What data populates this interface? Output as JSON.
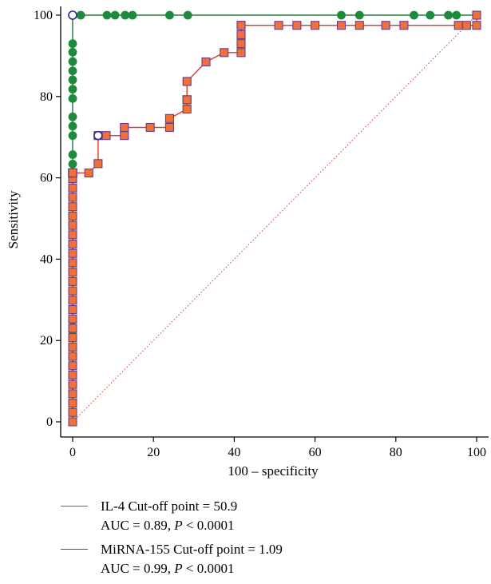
{
  "chart_data": {
    "type": "line",
    "xlabel": "100 – specificity",
    "ylabel": "Sensitivity",
    "xlim": [
      0,
      100
    ],
    "ylim": [
      0,
      100
    ],
    "x_ticks": [
      "0",
      "20",
      "40",
      "60",
      "80",
      "100"
    ],
    "y_ticks": [
      "0",
      "20",
      "40",
      "60",
      "80",
      "100"
    ],
    "grid": false,
    "legend_position": "bottom",
    "reference_line": {
      "x": [
        0,
        100
      ],
      "y": [
        0,
        100
      ],
      "color": "#d93a2b",
      "style": "dotted"
    },
    "series": [
      {
        "name": "IL-4",
        "color": "#d93a2b",
        "marker": "square",
        "marker_fill": "#f0703a",
        "marker_edge": "#6a3c8c",
        "x": [
          0,
          0,
          0,
          0,
          0,
          0,
          0,
          0,
          0,
          0,
          0,
          0,
          0,
          0,
          0,
          0,
          0,
          0,
          0,
          0,
          0,
          0,
          0,
          0,
          0,
          0,
          0,
          0,
          0,
          0,
          0,
          0,
          0,
          0,
          0,
          0,
          0,
          0,
          4,
          6.3,
          6.3,
          8.3,
          12.8,
          12.8,
          19.2,
          24,
          24,
          28.3,
          28.3,
          28.3,
          28.3,
          33,
          37.5,
          41.7,
          41.7,
          41.7,
          41.7,
          41.7,
          51,
          55.5,
          60,
          66.5,
          71,
          77.5,
          82,
          95.5,
          97.5,
          100,
          100
        ],
        "y": [
          0,
          2.3,
          4.6,
          6.9,
          9.2,
          11.5,
          13.8,
          16.1,
          18.4,
          20.7,
          23,
          25.3,
          27.6,
          29.9,
          32.2,
          34.5,
          36.8,
          39.1,
          41.4,
          43.7,
          46,
          48.3,
          50.6,
          52.9,
          55.2,
          57.5,
          59.8,
          61.2,
          61.2,
          61.2,
          61.2,
          61.2,
          61.2,
          61.2,
          61.2,
          61.2,
          61.2,
          61.2,
          61.2,
          63.5,
          70.4,
          70.4,
          70.4,
          72.4,
          72.4,
          72.4,
          74.6,
          76.9,
          79.2,
          79.2,
          83.7,
          88.5,
          90.8,
          90.8,
          93,
          95.2,
          97.5,
          97.5,
          97.5,
          97.5,
          97.5,
          97.5,
          97.5,
          97.5,
          97.5,
          97.5,
          97.5,
          97.5,
          100
        ],
        "legend_label": "IL-4 Cut-off point = 50.9",
        "legend_stats_prefix": "AUC = 0.89, ",
        "legend_stats_p": "P",
        "legend_stats_suffix": " < 0.0001"
      },
      {
        "name": "MiRNA-155",
        "color": "#1e7a3c",
        "marker": "circle",
        "marker_fill": "#1e8a3c",
        "marker_edge": "#1e8a3c",
        "x": [
          0,
          0,
          0,
          0,
          0,
          0,
          0,
          0,
          0,
          0,
          0,
          0,
          0,
          0,
          0,
          0,
          0,
          0,
          0,
          0,
          0,
          0,
          0,
          0,
          0,
          0,
          0,
          0,
          0,
          0,
          0,
          0,
          0,
          0,
          0,
          0,
          0,
          0,
          0,
          0,
          0,
          0,
          0,
          0,
          0,
          2,
          8.5,
          10.5,
          13,
          14.8,
          24,
          28.5,
          66.5,
          71,
          84.5,
          88.5,
          93,
          95,
          100
        ],
        "y": [
          0,
          2.3,
          4.6,
          6.9,
          9.2,
          11.5,
          13.8,
          16.1,
          18.4,
          20.7,
          22.4,
          25,
          27.6,
          29.9,
          34.5,
          36.8,
          39.1,
          41.4,
          43.7,
          46,
          48.3,
          50.6,
          52.9,
          55.2,
          57.5,
          59.8,
          61.2,
          63.4,
          65.7,
          70.4,
          72.7,
          75,
          79.5,
          81.8,
          84.1,
          86.3,
          88.6,
          90.9,
          93,
          100,
          100,
          100,
          100,
          100,
          100,
          100,
          100,
          100,
          100,
          100,
          100,
          100,
          100,
          100,
          100,
          100,
          100,
          100,
          100
        ],
        "legend_label": "MiRNA-155 Cut-off point = 1.09",
        "legend_stats_prefix": "AUC = 0.99, ",
        "legend_stats_p": "P",
        "legend_stats_suffix": " < 0.0001"
      }
    ],
    "cutoff_markers": [
      {
        "series": "IL-4",
        "x": 6.3,
        "y": 70.4
      },
      {
        "series": "MiRNA-155",
        "x": 0,
        "y": 100
      }
    ]
  }
}
